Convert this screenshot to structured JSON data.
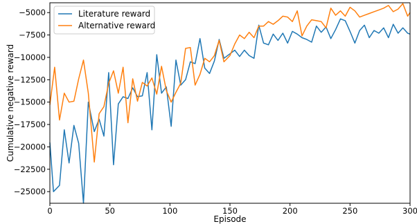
{
  "chart_data": {
    "type": "line",
    "title": "",
    "xlabel": "Episode",
    "ylabel": "Cumulative negative reward",
    "xlim": [
      0,
      300
    ],
    "ylim": [
      -26300,
      -3900
    ],
    "xticks": [
      0,
      50,
      100,
      150,
      200,
      250,
      300
    ],
    "yticks": [
      -25000,
      -22500,
      -20000,
      -17500,
      -15000,
      -12500,
      -10000,
      -7500,
      -5000
    ],
    "grid": false,
    "legend_position": "upper-left",
    "series": [
      {
        "name": "Literature reward",
        "color": "#1f77b4",
        "x": [
          0,
          3,
          8,
          12,
          16,
          20,
          24,
          28,
          32,
          37,
          41,
          45,
          49,
          53,
          57,
          61,
          65,
          69,
          73,
          77,
          81,
          85,
          89,
          93,
          97,
          101,
          105,
          109,
          113,
          117,
          121,
          125,
          129,
          133,
          137,
          141,
          145,
          150,
          154,
          158,
          162,
          166,
          170,
          174,
          178,
          182,
          186,
          190,
          194,
          198,
          202,
          206,
          210,
          214,
          218,
          222,
          226,
          230,
          234,
          238,
          242,
          246,
          250,
          254,
          258,
          262,
          266,
          270,
          274,
          278,
          282,
          286,
          290,
          294,
          298,
          300
        ],
        "y": [
          -19500,
          -25000,
          -24300,
          -18100,
          -21800,
          -17600,
          -19600,
          -26300,
          -15000,
          -18300,
          -16900,
          -18800,
          -11700,
          -22000,
          -15200,
          -14400,
          -14600,
          -13400,
          -14400,
          -14300,
          -11700,
          -18100,
          -9700,
          -14000,
          -13300,
          -17700,
          -10300,
          -13100,
          -12500,
          -10500,
          -10700,
          -7900,
          -11200,
          -11800,
          -10400,
          -8000,
          -10100,
          -9600,
          -9200,
          -9900,
          -9200,
          -9800,
          -10100,
          -6400,
          -8400,
          -8600,
          -7400,
          -8100,
          -7300,
          -8400,
          -7100,
          -7400,
          -7800,
          -8000,
          -8300,
          -6500,
          -7200,
          -6600,
          -7900,
          -6900,
          -5700,
          -5900,
          -7100,
          -8400,
          -7000,
          -6400,
          -7800,
          -7000,
          -7300,
          -6700,
          -7800,
          -6300,
          -7300,
          -6700,
          -7300,
          -7400
        ]
      },
      {
        "name": "Alternative reward",
        "color": "#ff7f0e",
        "x": [
          0,
          4,
          8,
          12,
          16,
          20,
          24,
          28,
          32,
          37,
          41,
          45,
          49,
          53,
          57,
          61,
          65,
          69,
          73,
          77,
          81,
          85,
          89,
          93,
          97,
          101,
          105,
          109,
          113,
          117,
          121,
          125,
          129,
          133,
          137,
          141,
          145,
          150,
          154,
          158,
          162,
          166,
          170,
          174,
          178,
          182,
          186,
          190,
          194,
          198,
          202,
          206,
          210,
          214,
          218,
          222,
          226,
          230,
          234,
          238,
          242,
          246,
          250,
          254,
          258,
          262,
          266,
          270,
          274,
          278,
          282,
          286,
          290,
          294,
          298,
          300
        ],
        "y": [
          -15300,
          -11100,
          -17000,
          -14000,
          -15000,
          -14900,
          -12400,
          -10300,
          -14000,
          -21700,
          -16300,
          -15500,
          -12900,
          -11500,
          -14000,
          -11100,
          -17300,
          -12400,
          -14900,
          -12800,
          -13200,
          -12300,
          -14100,
          -11000,
          -13700,
          -15000,
          -13900,
          -12900,
          -9000,
          -8900,
          -13100,
          -11900,
          -10100,
          -10500,
          -9800,
          -8100,
          -10500,
          -9800,
          -8500,
          -7500,
          -7900,
          -7200,
          -7800,
          -6500,
          -6500,
          -6000,
          -6300,
          -5900,
          -5400,
          -5500,
          -6000,
          -4800,
          -7600,
          -6500,
          -5800,
          -5900,
          -6000,
          -6700,
          -4500,
          -5300,
          -4800,
          -5400,
          -4400,
          -4800,
          -5500,
          -5300,
          -5100,
          -4900,
          -4700,
          -4500,
          -4200,
          -4900,
          -4600,
          -4000,
          -5400,
          -5000
        ]
      }
    ]
  }
}
